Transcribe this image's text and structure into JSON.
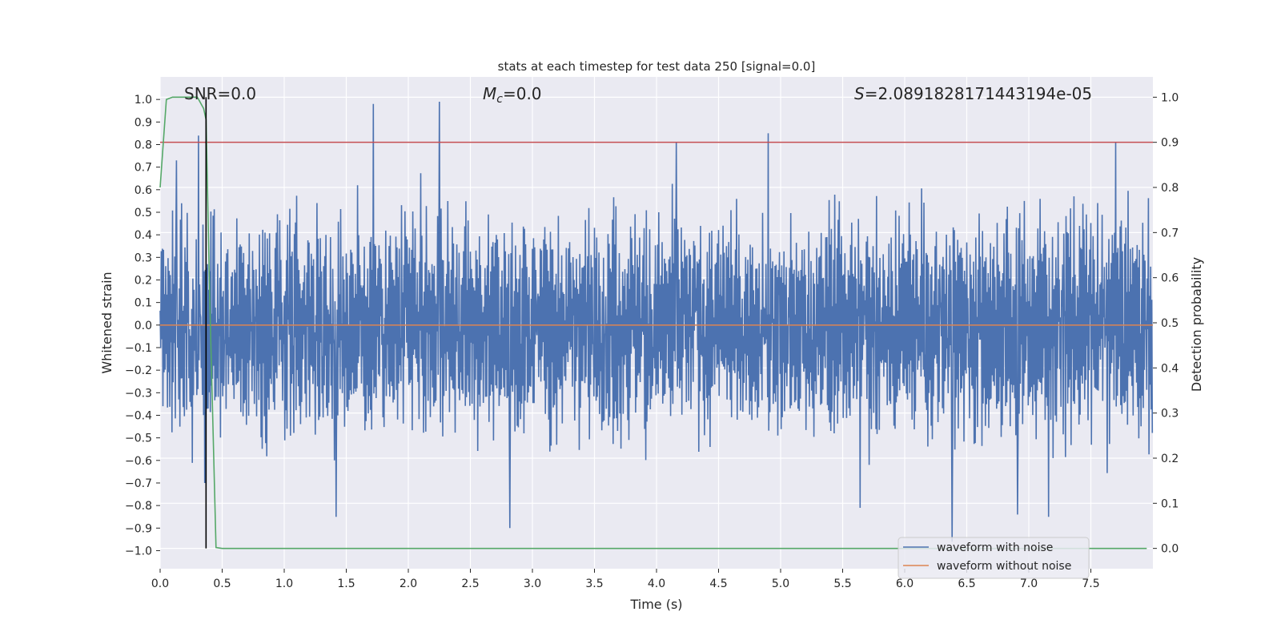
{
  "chart_data": {
    "type": "line",
    "title": "stats at each timestep for test data 250 [signal=0.0]",
    "xlabel": "Time (s)",
    "ylabel": "Whitened strain",
    "ylabel_right": "Detection probability",
    "xlim": [
      0.0,
      8.0
    ],
    "ylim": [
      -1.08,
      1.1
    ],
    "ylim_right": [
      -0.045,
      1.045
    ],
    "x_ticks": [
      "0.0",
      "0.5",
      "1.0",
      "1.5",
      "2.0",
      "2.5",
      "3.0",
      "3.5",
      "4.0",
      "4.5",
      "5.0",
      "5.5",
      "6.0",
      "6.5",
      "7.0",
      "7.5"
    ],
    "y_ticks": [
      "1.0",
      "0.9",
      "0.8",
      "0.7",
      "0.6",
      "0.5",
      "0.4",
      "0.3",
      "0.2",
      "0.1",
      "0.0",
      "−0.1",
      "−0.2",
      "−0.3",
      "−0.4",
      "−0.5",
      "−0.6",
      "−0.7",
      "−0.8",
      "−0.9",
      "−1.0"
    ],
    "y_right_ticks": [
      "1.0",
      "0.9",
      "0.8",
      "0.7",
      "0.6",
      "0.5",
      "0.4",
      "0.3",
      "0.2",
      "0.1",
      "0.0"
    ],
    "annotations": {
      "snr": "SNR=0.0",
      "mc_symbol": "M",
      "mc_sub": "c",
      "mc_value": "=0.0",
      "s_symbol": "S",
      "s_value": "=2.0891828171443194e-05"
    },
    "threshold": {
      "value": 0.9,
      "axis": "right",
      "color": "#c44e52"
    },
    "marker_time": 0.37,
    "waveform_without_noise": {
      "value": 0.0,
      "color": "#dd8452"
    },
    "waveform_with_noise": {
      "color": "#4c72b0",
      "sample_rate": 220,
      "typical_amplitude": 0.35,
      "peaks": [
        {
          "t": 0.13,
          "v": 0.73
        },
        {
          "t": 0.31,
          "v": 0.84
        },
        {
          "t": 1.72,
          "v": 0.98
        },
        {
          "t": 2.25,
          "v": 0.99
        },
        {
          "t": 4.16,
          "v": 0.81
        },
        {
          "t": 4.9,
          "v": 0.85
        },
        {
          "t": 7.7,
          "v": 0.81
        },
        {
          "t": 1.42,
          "v": -0.85
        },
        {
          "t": 2.82,
          "v": -0.9
        },
        {
          "t": 6.38,
          "v": -0.96
        },
        {
          "t": 6.91,
          "v": -0.84
        },
        {
          "t": 7.16,
          "v": -0.85
        },
        {
          "t": 5.64,
          "v": -0.81
        },
        {
          "t": 0.36,
          "v": -0.7
        }
      ]
    },
    "detection_probability": {
      "color": "#55a868",
      "t": [
        0.0,
        0.05,
        0.1,
        0.15,
        0.2,
        0.25,
        0.3,
        0.35,
        0.37,
        0.4,
        0.45,
        0.5,
        1.0,
        2.0,
        3.0,
        4.0,
        5.0,
        6.0,
        7.0,
        7.95
      ],
      "p": [
        0.8,
        0.995,
        1.0,
        1.0,
        1.0,
        1.0,
        1.0,
        0.975,
        0.95,
        0.55,
        0.002,
        0.0,
        0.0,
        0.0,
        0.0,
        0.0,
        0.0,
        0.0,
        0.0,
        0.0
      ]
    },
    "legend": {
      "position": "bottom-right",
      "entries": [
        {
          "label": "waveform with noise",
          "color": "#4c72b0"
        },
        {
          "label": "waveform without noise",
          "color": "#dd8452"
        }
      ]
    }
  }
}
